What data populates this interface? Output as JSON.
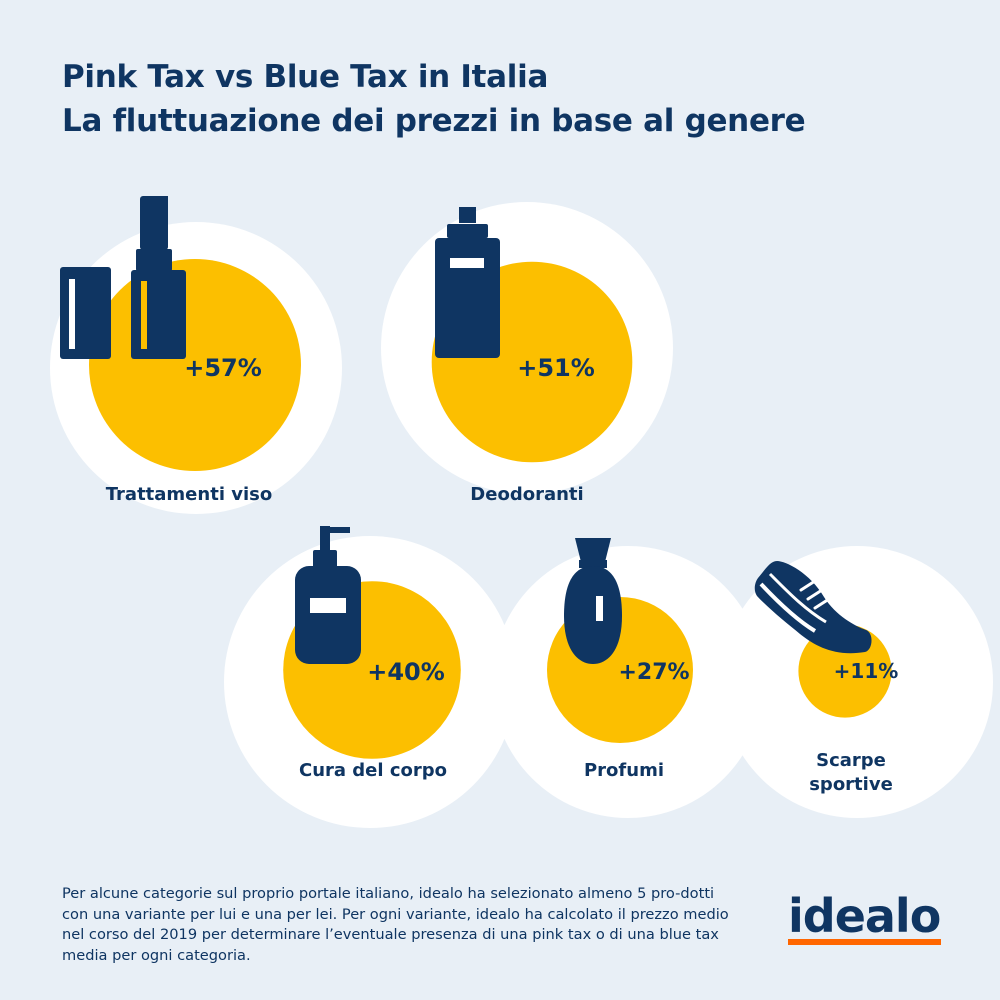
{
  "title_line1": "Pink Tax vs Blue Tax in Italia",
  "title_line2": "La fluttuazione dei prezzi in base al genere",
  "chart_data": {
    "type": "bubble",
    "unit": "%",
    "categories": [
      "Trattamenti viso",
      "Deodoranti",
      "Cura del corpo",
      "Profumi",
      "Scarpe sportive"
    ],
    "values": [
      57,
      51,
      40,
      27,
      11
    ],
    "labels": [
      "+57%",
      "+51%",
      "+40%",
      "+27%",
      "+11%"
    ],
    "icons": [
      "lipstick-icon",
      "deodorant-icon",
      "soap-dispenser-icon",
      "perfume-icon",
      "sneaker-icon"
    ],
    "colors": {
      "bubble": "#fcbf00",
      "background_circle": "#ffffff",
      "icon": "#0f3562"
    }
  },
  "footnote": "Per alcune categorie sul proprio portale italiano, idealo ha selezionato almeno 5 pro-dotti con una variante per lui e una per lei. Per ogni variante, idealo ha calcolato il prezzo medio nel corso del 2019 per determinare l’eventuale presenza di una pink tax o di una blue tax media per ogni categoria.",
  "logo": {
    "text": "idealo",
    "bar_color": "#ff6600"
  }
}
